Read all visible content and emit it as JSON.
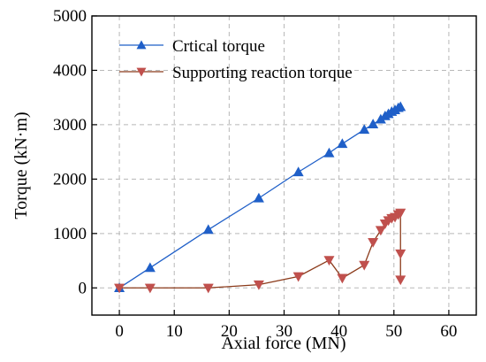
{
  "chart_data": {
    "type": "line",
    "xlabel": "Axial force (MN)",
    "ylabel": "Torque (kN·m)",
    "xlim": [
      -5,
      65
    ],
    "ylim": [
      -500,
      5000
    ],
    "xticks": [
      0,
      10,
      20,
      30,
      40,
      50,
      60
    ],
    "yticks": [
      0,
      1000,
      2000,
      3000,
      4000,
      5000
    ],
    "grid": true,
    "legend_position": "top-left",
    "series": [
      {
        "name": "Crtical torque",
        "color": "#1f5fc8",
        "marker": "triangle-up",
        "x": [
          0,
          5.6,
          16.2,
          25.4,
          32.6,
          38.2,
          40.6,
          44.6,
          46.2,
          47.6,
          48.4,
          49.0,
          49.6,
          50.2,
          50.8,
          51.2
        ],
        "y": [
          0,
          370,
          1070,
          1650,
          2130,
          2480,
          2650,
          2910,
          3010,
          3100,
          3160,
          3200,
          3240,
          3270,
          3310,
          3330
        ]
      },
      {
        "name": "Supporting reaction torque",
        "color": "#c0504d",
        "line_color": "#8b3a1a",
        "marker": "triangle-down",
        "x": [
          0,
          5.6,
          16.2,
          25.4,
          32.6,
          38.2,
          40.6,
          44.6,
          46.2,
          47.6,
          48.4,
          49.0,
          49.6,
          50.2,
          50.8,
          51.2,
          51.2,
          51.2
        ],
        "y": [
          0,
          0,
          0,
          60,
          210,
          510,
          180,
          420,
          840,
          1060,
          1180,
          1240,
          1280,
          1300,
          1350,
          1380,
          630,
          150
        ]
      }
    ]
  }
}
